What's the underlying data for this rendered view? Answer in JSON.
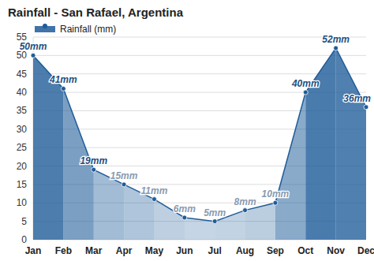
{
  "chart_data": {
    "type": "area",
    "title": "Rainfall - San Rafael, Argentina",
    "categories": [
      "Jan",
      "Feb",
      "Mar",
      "Apr",
      "May",
      "Jun",
      "Jul",
      "Aug",
      "Sep",
      "Oct",
      "Nov",
      "Dec"
    ],
    "series": [
      {
        "name": "Rainfall (mm)",
        "color": "#1f5c99",
        "values": [
          50,
          41,
          19,
          15,
          11,
          6,
          5,
          8,
          10,
          40,
          52,
          36
        ],
        "value_labels": [
          "50mm",
          "41mm",
          "19mm",
          "15mm",
          "11mm",
          "6mm",
          "5mm",
          "8mm",
          "10mm",
          "40mm",
          "52mm",
          "36mm"
        ]
      }
    ],
    "ylim": [
      0,
      55
    ],
    "yticks": [
      0,
      5,
      10,
      15,
      20,
      25,
      30,
      35,
      40,
      45,
      50,
      55
    ],
    "grid": true,
    "legend": "top-left",
    "data_labels": true,
    "marker": "circle"
  }
}
